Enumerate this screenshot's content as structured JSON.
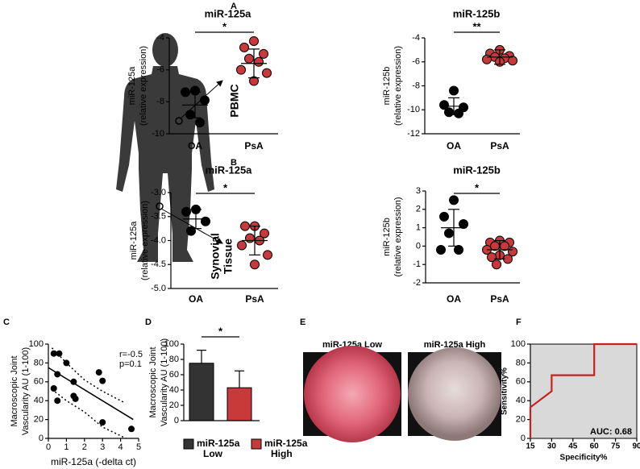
{
  "figure": {
    "panel_labels": [
      "A",
      "B",
      "C",
      "D",
      "E",
      "F"
    ],
    "pbmc": "PBMC",
    "synovial": [
      "Synovial",
      "Tissue"
    ],
    "images": [
      "miR-125a Low",
      "miR-125a High"
    ]
  },
  "chart_data": [
    {
      "type": "dotplot",
      "title": "miR-125a",
      "ylabel": [
        "miR-125a",
        "(relative expression)"
      ],
      "categories": [
        "OA",
        "PsA"
      ],
      "colors": [
        "#000000",
        "#c8393c"
      ],
      "groups": [
        [
          -7.3,
          -7.4,
          -7.9,
          -8.8,
          -9.3
        ],
        [
          -4.2,
          -4.6,
          -5.0,
          -5.3,
          -5.5,
          -6.0,
          -6.2,
          -6.7
        ]
      ],
      "means": [
        -8.2,
        -5.6
      ],
      "sds": [
        0.8,
        0.9
      ],
      "ylim": [
        -10,
        -4
      ],
      "yticks": [
        -10,
        -8,
        -6,
        -4
      ],
      "significance": "*"
    },
    {
      "type": "dotplot",
      "title": "miR-125b",
      "ylabel": [
        "miR-125b",
        "(relative expression)"
      ],
      "categories": [
        "OA",
        "PsA"
      ],
      "colors": [
        "#000000",
        "#c8393c"
      ],
      "groups": [
        [
          -8.4,
          -9.6,
          -9.8,
          -10.2,
          -10.3
        ],
        [
          -5.0,
          -5.3,
          -5.5,
          -5.6,
          -5.7,
          -5.8,
          -5.9,
          -6.0
        ]
      ],
      "means": [
        -9.7,
        -5.6
      ],
      "sds": [
        0.7,
        0.6
      ],
      "ylim": [
        -12,
        -4
      ],
      "yticks": [
        -12,
        -10,
        -8,
        -6,
        -4
      ],
      "significance": "**"
    },
    {
      "type": "dotplot",
      "title": "miR-125a",
      "ylabel": [
        "miR-125a",
        "(relative expression)"
      ],
      "categories": [
        "OA",
        "PsA"
      ],
      "colors": [
        "#000000",
        "#c8393c"
      ],
      "groups": [
        [
          -3.35,
          -3.4,
          -3.6,
          -3.8
        ],
        [
          -3.7,
          -3.7,
          -3.85,
          -3.95,
          -4.0,
          -4.1,
          -4.3,
          -4.5
        ]
      ],
      "means": [
        -3.55,
        -4.0
      ],
      "sds": [
        0.2,
        0.3
      ],
      "ylim": [
        -5,
        -3
      ],
      "yticks": [
        {
          "value": -5,
          "label": "-5.0"
        },
        -4.5,
        {
          "value": -4,
          "label": "-4.0"
        },
        -3.5,
        {
          "value": -3,
          "label": "-3.0"
        }
      ],
      "significance": "*"
    },
    {
      "type": "dotplot",
      "title": "miR-125b",
      "ylabel": [
        "miR-125b",
        "(relative expression)"
      ],
      "categories": [
        "OA",
        "PsA"
      ],
      "colors": [
        "#000000",
        "#c8393c"
      ],
      "groups": [
        [
          2.5,
          1.6,
          1.2,
          0.7,
          -0.2,
          -0.2
        ],
        [
          0.3,
          0.2,
          0.2,
          0.0,
          0.0,
          -0.2,
          -0.3,
          -0.5,
          -0.6,
          -0.7,
          -1.0
        ]
      ],
      "means": [
        1.0,
        -0.2
      ],
      "sds": [
        1.0,
        0.5
      ],
      "ylim": [
        -2,
        3
      ],
      "yticks": [
        -2,
        -1,
        0,
        1,
        2,
        3
      ],
      "significance": "*"
    },
    {
      "type": "scatter",
      "xlabel": "miR-125a (-delta ct)",
      "ylabel": [
        "Macroscopic Joint",
        "Vascularity AU (1-100)"
      ],
      "x": [
        0.3,
        0.6,
        1.0,
        0.5,
        0.3,
        0.5,
        1.4,
        1.5,
        1.4,
        2.8,
        3.0,
        3.0,
        4.6
      ],
      "y": [
        90,
        90,
        80,
        68,
        53,
        40,
        60,
        42,
        45,
        70,
        61,
        17,
        10
      ],
      "color": "#000000",
      "fit": {
        "x": [
          0,
          4.7
        ],
        "y": [
          75,
          20
        ]
      },
      "ci_upper": {
        "x": [
          0.2,
          1,
          2,
          3,
          4.2
        ],
        "y": [
          96,
          80,
          62,
          50,
          38
        ]
      },
      "ci_lower": {
        "x": [
          0.2,
          1,
          2,
          3,
          4.3
        ],
        "y": [
          52,
          40,
          28,
          12,
          0
        ]
      },
      "xlim": [
        0,
        5
      ],
      "xticks": [
        0,
        1,
        2,
        3,
        4,
        5
      ],
      "ylim": [
        0,
        100
      ],
      "yticks": [
        0,
        20,
        40,
        60,
        80,
        100
      ],
      "annotations": [
        "r=-0.5",
        "p=0.1"
      ]
    },
    {
      "type": "bar",
      "ylabel": [
        "Macroscopic Joint",
        "Vascularity AU (1-100)"
      ],
      "categories": [
        [
          "miR-125a",
          "Low"
        ],
        [
          "miR-125a",
          "High"
        ]
      ],
      "values": [
        75,
        43
      ],
      "errors": [
        17,
        22
      ],
      "colors": [
        "#333333",
        "#c83a3a"
      ],
      "ylim": [
        0,
        100
      ],
      "yticks": [
        0,
        20,
        40,
        60,
        80,
        100
      ],
      "significance": "*"
    },
    {
      "type": "roc",
      "x": [
        15,
        15,
        30,
        30,
        60,
        60,
        90
      ],
      "y": [
        0,
        33,
        50,
        67,
        67,
        100,
        100
      ],
      "color": "#c8201e",
      "background": "#d9d9d9",
      "xlim": [
        15,
        90
      ],
      "xticks": [
        15,
        30,
        45,
        60,
        75,
        90
      ],
      "ylim": [
        0,
        100
      ],
      "yticks": [
        0,
        20,
        40,
        60,
        80,
        100
      ],
      "xlabel": "Specificity%",
      "ylabel": "Sensitivity%",
      "annotation": "AUC: 0.68"
    }
  ]
}
